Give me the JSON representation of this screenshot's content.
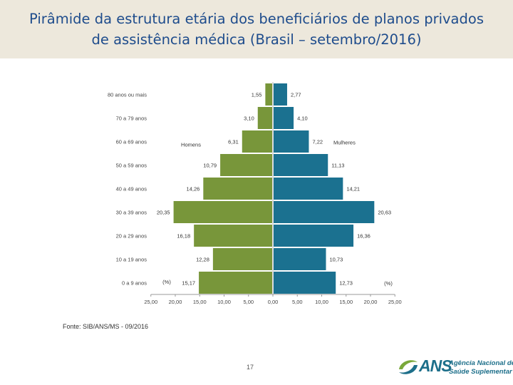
{
  "slide": {
    "title_line1": "Pirâmide da estrutura etária dos beneficiários de planos privados",
    "title_line2": "de assistência médica (Brasil – setembro/2016)",
    "source": "Fonte: SIB/ANS/MS - 09/2016",
    "page_number": "17",
    "logo": {
      "name": "ANS",
      "line1": "Agência Nacional de",
      "line2": "Saúde Suplementar"
    }
  },
  "chart_data": {
    "type": "bar",
    "orientation": "horizontal-pyramid",
    "categories": [
      "80 anos ou mais",
      "70 a 79 anos",
      "60 a 69 anos",
      "50 a 59 anos",
      "40 a 49 anos",
      "30 a 39 anos",
      "20 a 29 anos",
      "10 a 19 anos",
      "0 a 9 anos"
    ],
    "series": [
      {
        "name": "Homens",
        "color": "#78963a",
        "values": [
          1.55,
          3.1,
          6.31,
          10.79,
          14.26,
          20.35,
          16.18,
          12.28,
          15.17
        ],
        "labels": [
          "1,55",
          "3,10",
          "6,31",
          "10,79",
          "14,26",
          "20,35",
          "16,18",
          "12,28",
          "15,17"
        ]
      },
      {
        "name": "Mulheres",
        "color": "#1b7190",
        "values": [
          2.77,
          4.1,
          7.22,
          11.13,
          14.21,
          20.63,
          16.36,
          10.73,
          12.73
        ],
        "labels": [
          "2,77",
          "4,10",
          "7,22",
          "11,13",
          "14,21",
          "20,63",
          "16,36",
          "10,73",
          "12,73"
        ]
      }
    ],
    "unit_left": "(%)",
    "unit_right": "(%)",
    "xlim": [
      -25,
      25
    ],
    "x_ticks": [
      -25,
      -20,
      -15,
      -10,
      -5,
      0,
      5,
      10,
      15,
      20,
      25
    ],
    "x_tick_labels": [
      "25,00",
      "20,00",
      "15,00",
      "10,00",
      "5,00",
      "0,00",
      "5,00",
      "10,00",
      "15,00",
      "20,00",
      "25,00"
    ]
  }
}
